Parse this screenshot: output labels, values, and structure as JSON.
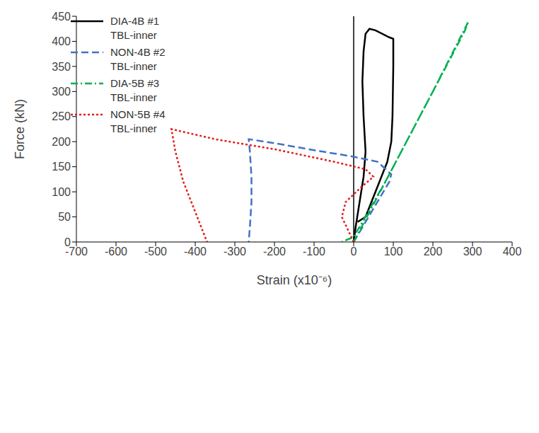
{
  "chart_data": {
    "type": "line",
    "x_label": "Strain (x10⁻⁶)",
    "y_label": "Force (kN)",
    "xlim": [
      -700,
      400
    ],
    "xticks": [
      -700,
      -600,
      -500,
      -400,
      -300,
      -200,
      -100,
      0,
      100,
      200,
      300,
      400
    ],
    "ylim": [
      0,
      450
    ],
    "yticks": [
      0,
      50,
      100,
      150,
      200,
      250,
      300,
      350,
      400,
      450
    ],
    "grid": false,
    "legend": "upper left",
    "series": [
      {
        "name": "DIA-4B #1\nTBL-inner",
        "color": "#000000",
        "line_style": "solid",
        "x": [
          0,
          5,
          15,
          25,
          30,
          25,
          22,
          25,
          30,
          40,
          55,
          90,
          100,
          100,
          98,
          95,
          85,
          65,
          45,
          30,
          10
        ],
        "values": [
          0,
          30,
          80,
          130,
          180,
          250,
          320,
          380,
          415,
          425,
          422,
          408,
          405,
          350,
          250,
          200,
          160,
          120,
          80,
          50,
          40
        ]
      },
      {
        "name": "NON-4B #2\nTBL-inner",
        "color": "#4472c4",
        "line_style": "dashed",
        "x": [
          0,
          30,
          60,
          90,
          95,
          60,
          0,
          -100,
          -200,
          -265,
          -262,
          -258,
          -258,
          -262,
          -265
        ],
        "values": [
          0,
          40,
          80,
          120,
          135,
          160,
          170,
          183,
          197,
          205,
          180,
          130,
          80,
          30,
          0
        ]
      },
      {
        "name": "DIA-5B #3\nTBL-inner",
        "color": "#00b050",
        "line_style": "dashdot",
        "x": [
          0,
          100,
          200,
          290,
          280,
          180,
          80,
          0,
          -30
        ],
        "values": [
          0,
          150,
          300,
          440,
          420,
          270,
          120,
          10,
          0
        ]
      },
      {
        "name": "NON-5B #4\nTBL-inner",
        "color": "#e02020",
        "line_style": "dotted",
        "x": [
          0,
          -30,
          -20,
          20,
          50,
          30,
          -50,
          -200,
          -350,
          -460,
          -450,
          -430,
          -410,
          -390,
          -370
        ],
        "values": [
          0,
          50,
          80,
          110,
          130,
          145,
          160,
          185,
          205,
          225,
          180,
          120,
          80,
          40,
          0
        ]
      }
    ]
  }
}
